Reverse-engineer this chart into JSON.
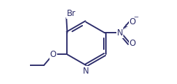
{
  "bg_color": "#ffffff",
  "bond_color": "#2d2d6b",
  "atom_color": "#2d2d6b",
  "line_width": 1.4,
  "font_size": 8.5,
  "figsize": [
    2.54,
    1.21
  ],
  "dpi": 100,
  "xlim": [
    -0.25,
    1.15
  ],
  "ylim": [
    0.0,
    1.0
  ]
}
